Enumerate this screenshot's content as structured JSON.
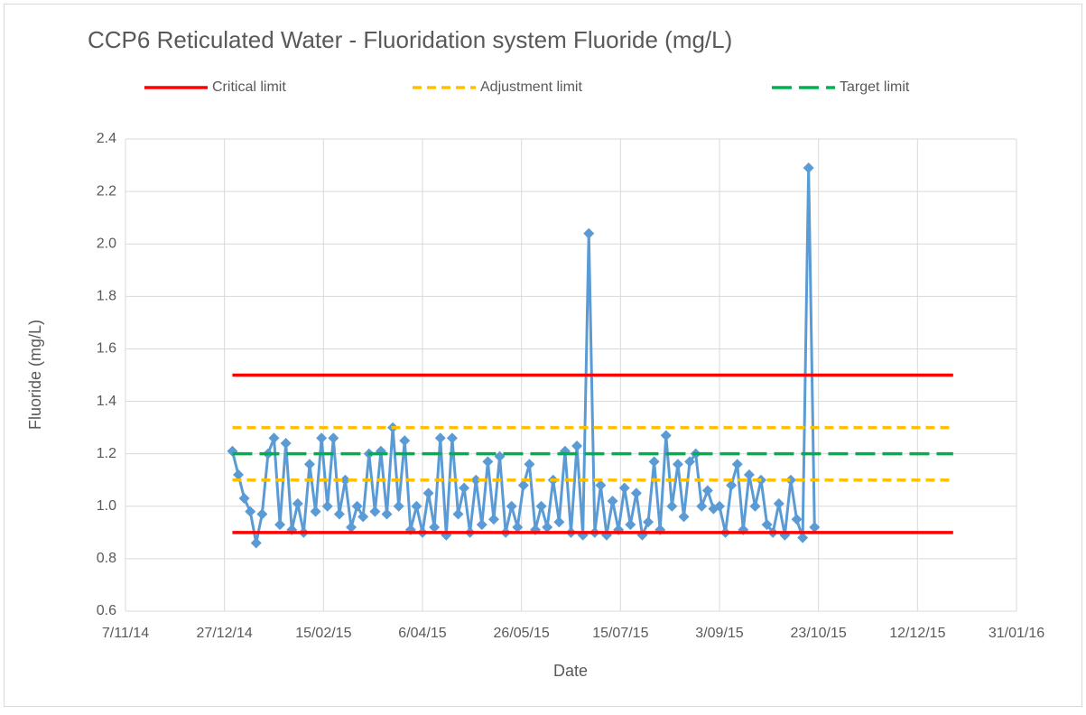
{
  "chart_data": {
    "type": "line",
    "title": "CCP6 Reticulated Water - Fluoridation system Fluoride (mg/L)",
    "x_label": "Date",
    "y_label": "Fluoride (mg/L)",
    "xlim": [
      "2014-11-07",
      "2016-01-31"
    ],
    "xticks": [
      {
        "value": "2014-11-07",
        "label": "7/11/14"
      },
      {
        "value": "2014-12-27",
        "label": "27/12/14"
      },
      {
        "value": "2015-02-15",
        "label": "15/02/15"
      },
      {
        "value": "2015-04-06",
        "label": "6/04/15"
      },
      {
        "value": "2015-05-26",
        "label": "26/05/15"
      },
      {
        "value": "2015-07-15",
        "label": "15/07/15"
      },
      {
        "value": "2015-09-03",
        "label": "3/09/15"
      },
      {
        "value": "2015-10-23",
        "label": "23/10/15"
      },
      {
        "value": "2015-12-12",
        "label": "12/12/15"
      },
      {
        "value": "2016-01-31",
        "label": "31/01/16"
      }
    ],
    "ylim": [
      0.6,
      2.4
    ],
    "yticks": [
      0.6,
      0.8,
      {
        "value": 1,
        "label": "1.0"
      },
      1.2,
      1.4,
      1.6,
      1.8,
      {
        "value": 2,
        "label": "2.0"
      },
      2.2,
      2.4
    ],
    "grid": true,
    "legend": "top",
    "series": [
      {
        "color": "#5b9bd5",
        "marker": "diamond",
        "x": [
          "2014-12-31",
          "2015-01-03",
          "2015-01-06",
          "2015-01-09",
          "2015-01-12",
          "2015-01-15",
          "2015-01-18",
          "2015-01-21",
          "2015-01-24",
          "2015-01-27",
          "2015-01-30",
          "2015-02-02",
          "2015-02-05",
          "2015-02-08",
          "2015-02-11",
          "2015-02-14",
          "2015-02-17",
          "2015-02-20",
          "2015-02-23",
          "2015-02-26",
          "2015-03-01",
          "2015-03-04",
          "2015-03-07",
          "2015-03-10",
          "2015-03-13",
          "2015-03-16",
          "2015-03-19",
          "2015-03-22",
          "2015-03-25",
          "2015-03-28",
          "2015-03-31",
          "2015-04-03",
          "2015-04-06",
          "2015-04-09",
          "2015-04-12",
          "2015-04-15",
          "2015-04-18",
          "2015-04-21",
          "2015-04-24",
          "2015-04-27",
          "2015-04-30",
          "2015-05-03",
          "2015-05-06",
          "2015-05-09",
          "2015-05-12",
          "2015-05-15",
          "2015-05-18",
          "2015-05-21",
          "2015-05-24",
          "2015-05-27",
          "2015-05-30",
          "2015-06-02",
          "2015-06-05",
          "2015-06-08",
          "2015-06-11",
          "2015-06-14",
          "2015-06-17",
          "2015-06-20",
          "2015-06-23",
          "2015-06-26",
          "2015-06-29",
          "2015-07-02",
          "2015-07-05",
          "2015-07-08",
          "2015-07-11",
          "2015-07-14",
          "2015-07-17",
          "2015-07-20",
          "2015-07-23",
          "2015-07-26",
          "2015-07-29",
          "2015-08-01",
          "2015-08-04",
          "2015-08-07",
          "2015-08-10",
          "2015-08-13",
          "2015-08-16",
          "2015-08-19",
          "2015-08-22",
          "2015-08-25",
          "2015-08-28",
          "2015-08-31",
          "2015-09-03",
          "2015-09-06",
          "2015-09-09",
          "2015-09-12",
          "2015-09-15",
          "2015-09-18",
          "2015-09-21",
          "2015-09-24",
          "2015-09-27",
          "2015-09-30",
          "2015-10-03",
          "2015-10-06",
          "2015-10-09",
          "2015-10-12",
          "2015-10-15",
          "2015-10-18",
          "2015-10-21"
        ],
        "values": [
          1.21,
          1.12,
          1.03,
          0.98,
          0.86,
          0.97,
          1.2,
          1.26,
          0.93,
          1.24,
          0.91,
          1.01,
          0.9,
          1.16,
          0.98,
          1.26,
          1.0,
          1.26,
          0.97,
          1.1,
          0.92,
          1.0,
          0.96,
          1.2,
          0.98,
          1.21,
          0.97,
          1.3,
          1.0,
          1.25,
          0.91,
          1.0,
          0.9,
          1.05,
          0.92,
          1.26,
          0.89,
          1.26,
          0.97,
          1.07,
          0.9,
          1.1,
          0.93,
          1.17,
          0.95,
          1.19,
          0.9,
          1.0,
          0.92,
          1.08,
          1.16,
          0.91,
          1.0,
          0.92,
          1.1,
          0.94,
          1.21,
          0.9,
          1.23,
          0.89,
          2.04,
          0.9,
          1.08,
          0.89,
          1.02,
          0.91,
          1.07,
          0.93,
          1.05,
          0.89,
          0.94,
          1.17,
          0.91,
          1.27,
          1.0,
          1.16,
          0.96,
          1.17,
          1.2,
          1.0,
          1.06,
          0.99,
          1.0,
          0.9,
          1.08,
          1.16,
          0.91,
          1.12,
          1.0,
          1.1,
          0.93,
          0.9,
          1.01,
          0.89,
          1.1,
          0.95,
          0.88,
          2.29,
          0.92
        ]
      },
      {
        "name": "Critical limit",
        "color": "#ff0000",
        "dash": "solid",
        "x": [
          "2014-12-31",
          "2015-12-30",
          "2014-12-31",
          "2014-12-31",
          "2015-12-30"
        ],
        "values": [
          1.5,
          1.5,
          null,
          0.9,
          0.9
        ]
      },
      {
        "name": "Adjustment limit",
        "color": "#ffc000",
        "dash": "short",
        "x": [
          "2014-12-31",
          "2015-12-30",
          "2014-12-31",
          "2014-12-31",
          "2015-12-30"
        ],
        "values": [
          1.3,
          1.3,
          null,
          1.1,
          1.1
        ]
      },
      {
        "name": "Target limit",
        "color": "#00b050",
        "dash": "long",
        "x": [
          "2014-12-31",
          "2015-12-30"
        ],
        "values": [
          1.2,
          1.2
        ]
      }
    ]
  }
}
